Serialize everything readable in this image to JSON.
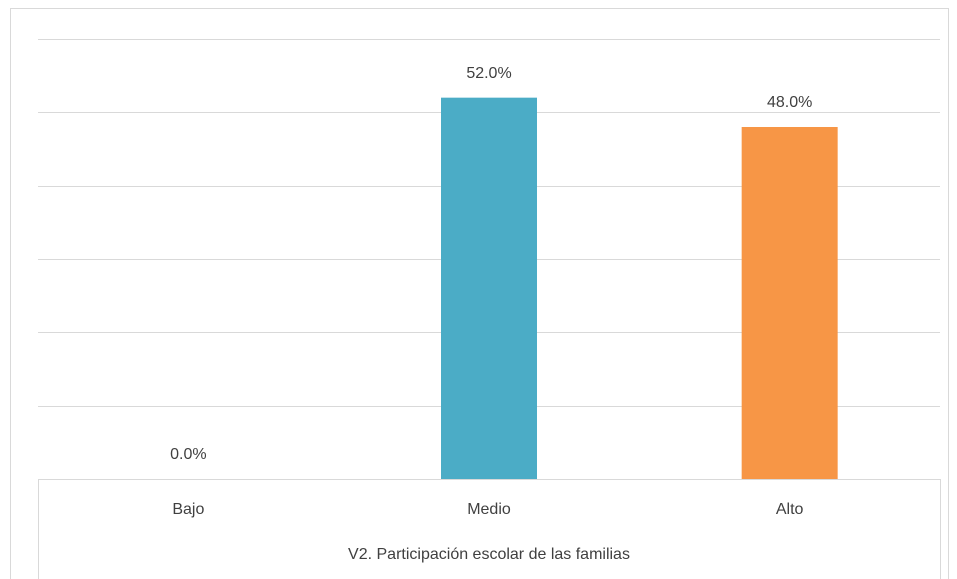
{
  "chart_data": {
    "type": "bar",
    "x_label": "V2. Participación escolar de las familias",
    "categories": [
      "Bajo",
      "Medio",
      "Alto"
    ],
    "values": [
      0,
      52,
      48
    ],
    "value_labels": [
      "0.0%",
      "52.0%",
      "48.0%"
    ],
    "colors": [
      "#4f81bd",
      "#4bacc6",
      "#f79646"
    ],
    "ylim": [
      0,
      60
    ],
    "yticks": [
      0,
      10,
      20,
      30,
      40,
      50,
      60
    ],
    "grid": true
  }
}
